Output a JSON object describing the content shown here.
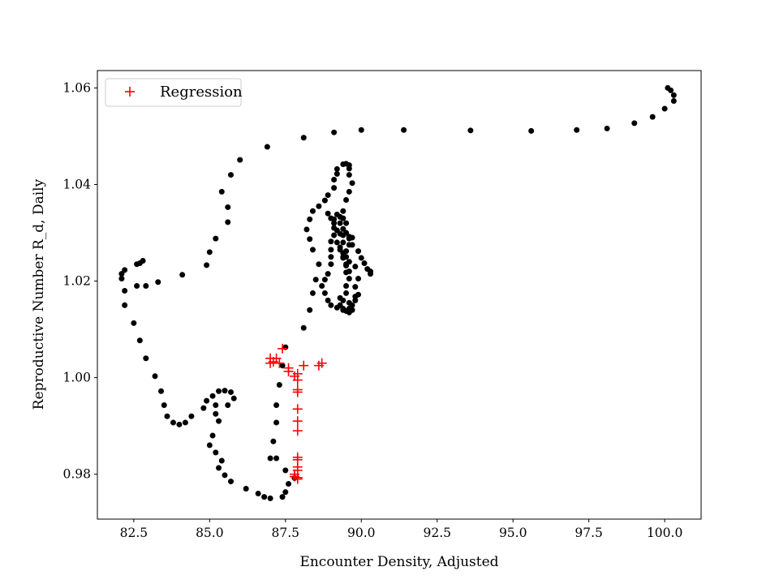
{
  "chart_data": {
    "type": "scatter",
    "title": "",
    "xlabel": "Encounter Density, Adjusted",
    "ylabel": "Reproductive Number R_d, Daily",
    "xlim": [
      81.3,
      101.2
    ],
    "ylim": [
      0.9707,
      1.0636
    ],
    "xticks": [
      82.5,
      85.0,
      87.5,
      90.0,
      92.5,
      95.0,
      97.5,
      100.0
    ],
    "xtick_labels": [
      "82.5",
      "85.0",
      "87.5",
      "90.0",
      "92.5",
      "95.0",
      "97.5",
      "100.0"
    ],
    "yticks": [
      0.98,
      1.0,
      1.02,
      1.04,
      1.06
    ],
    "ytick_labels": [
      "0.98",
      "1.00",
      "1.02",
      "1.04",
      "1.06"
    ],
    "grid": false,
    "legend": {
      "position": "upper-left",
      "entries": [
        "Regression"
      ]
    },
    "series": [
      {
        "marker": "circle",
        "color": "#000000",
        "points": [
          [
            100.1,
            1.06
          ],
          [
            100.2,
            1.0595
          ],
          [
            100.3,
            1.0585
          ],
          [
            100.3,
            1.0573
          ],
          [
            100.0,
            1.0557
          ],
          [
            99.6,
            1.054
          ],
          [
            99.0,
            1.0527
          ],
          [
            98.1,
            1.0516
          ],
          [
            97.1,
            1.0513
          ],
          [
            95.6,
            1.0511
          ],
          [
            93.6,
            1.0512
          ],
          [
            91.4,
            1.0513
          ],
          [
            90.0,
            1.0513
          ],
          [
            89.1,
            1.0508
          ],
          [
            88.1,
            1.0497
          ],
          [
            86.9,
            1.0478
          ],
          [
            86.0,
            1.0451
          ],
          [
            85.7,
            1.042
          ],
          [
            85.4,
            1.0385
          ],
          [
            85.6,
            1.0353
          ],
          [
            85.6,
            1.0322
          ],
          [
            85.2,
            1.0288
          ],
          [
            85.0,
            1.026
          ],
          [
            84.9,
            1.0233
          ],
          [
            84.1,
            1.0213
          ],
          [
            83.3,
            1.0198
          ],
          [
            82.9,
            1.019
          ],
          [
            82.6,
            1.019
          ],
          [
            82.8,
            1.0242
          ],
          [
            82.7,
            1.0237
          ],
          [
            82.6,
            1.0235
          ],
          [
            82.2,
            1.0223
          ],
          [
            82.1,
            1.0215
          ],
          [
            82.1,
            1.0205
          ],
          [
            82.2,
            1.018
          ],
          [
            82.2,
            1.015
          ],
          [
            82.5,
            1.0113
          ],
          [
            82.7,
            1.0077
          ],
          [
            82.9,
            1.004
          ],
          [
            83.2,
            1.0003
          ],
          [
            83.4,
            0.9972
          ],
          [
            83.5,
            0.9943
          ],
          [
            83.6,
            0.992
          ],
          [
            83.8,
            0.9907
          ],
          [
            84.0,
            0.9903
          ],
          [
            84.2,
            0.9907
          ],
          [
            84.4,
            0.992
          ],
          [
            84.8,
            0.9937
          ],
          [
            84.9,
            0.9952
          ],
          [
            85.1,
            0.9962
          ],
          [
            85.3,
            0.9972
          ],
          [
            85.5,
            0.9973
          ],
          [
            85.7,
            0.997
          ],
          [
            85.8,
            0.9957
          ],
          [
            85.6,
            0.9943
          ],
          [
            85.2,
            0.9943
          ],
          [
            85.2,
            0.9925
          ],
          [
            85.3,
            0.991
          ],
          [
            85.1,
            0.988
          ],
          [
            85.0,
            0.986
          ],
          [
            85.2,
            0.9845
          ],
          [
            85.4,
            0.9828
          ],
          [
            85.3,
            0.9813
          ],
          [
            85.5,
            0.9798
          ],
          [
            85.7,
            0.9785
          ],
          [
            86.2,
            0.977
          ],
          [
            86.6,
            0.976
          ],
          [
            86.8,
            0.9753
          ],
          [
            87.0,
            0.975
          ],
          [
            87.4,
            0.9753
          ],
          [
            87.5,
            0.9763
          ],
          [
            87.6,
            0.978
          ],
          [
            87.8,
            0.9792
          ],
          [
            87.5,
            0.9808
          ],
          [
            87.2,
            0.9833
          ],
          [
            87.0,
            0.9833
          ],
          [
            87.1,
            0.9868
          ],
          [
            87.2,
            0.9907
          ],
          [
            87.2,
            0.9943
          ],
          [
            87.3,
            0.9985
          ],
          [
            87.4,
            1.0025
          ],
          [
            87.5,
            1.0063
          ],
          [
            88.1,
            1.0103
          ],
          [
            88.3,
            1.014
          ],
          [
            88.4,
            1.0175
          ],
          [
            88.5,
            1.0203
          ],
          [
            88.6,
            1.0235
          ],
          [
            88.4,
            1.0265
          ],
          [
            88.3,
            1.0287
          ],
          [
            88.2,
            1.0307
          ],
          [
            88.3,
            1.0328
          ],
          [
            88.4,
            1.0345
          ],
          [
            88.6,
            1.0355
          ],
          [
            88.8,
            1.0367
          ],
          [
            88.9,
            1.0378
          ],
          [
            89.1,
            1.0393
          ],
          [
            89.1,
            1.041
          ],
          [
            89.2,
            1.0422
          ],
          [
            89.2,
            1.0432
          ],
          [
            89.4,
            1.0442
          ],
          [
            89.5,
            1.0443
          ],
          [
            89.6,
            1.044
          ],
          [
            89.6,
            1.0433
          ],
          [
            89.6,
            1.042
          ],
          [
            89.7,
            1.0403
          ],
          [
            89.6,
            1.0385
          ],
          [
            89.5,
            1.0368
          ],
          [
            89.4,
            1.0345
          ],
          [
            89.4,
            1.033
          ],
          [
            89.5,
            1.032
          ],
          [
            89.4,
            1.0308
          ],
          [
            89.3,
            1.0298
          ],
          [
            89.6,
            1.0288
          ],
          [
            89.7,
            1.0275
          ],
          [
            89.9,
            1.0262
          ],
          [
            90.0,
            1.0248
          ],
          [
            90.1,
            1.0237
          ],
          [
            90.2,
            1.0225
          ],
          [
            90.3,
            1.0215
          ],
          [
            90.3,
            1.022
          ],
          [
            89.8,
            1.023
          ],
          [
            89.6,
            1.024
          ],
          [
            89.5,
            1.025
          ],
          [
            89.4,
            1.0258
          ],
          [
            89.3,
            1.027
          ],
          [
            89.2,
            1.028
          ],
          [
            89.1,
            1.0295
          ],
          [
            89.1,
            1.031
          ],
          [
            89.1,
            1.032
          ],
          [
            89.0,
            1.033
          ],
          [
            89.2,
            1.0338
          ],
          [
            89.3,
            1.0333
          ],
          [
            89.3,
            1.032
          ],
          [
            89.2,
            1.0305
          ],
          [
            89.0,
            1.0282
          ],
          [
            89.0,
            1.0265
          ],
          [
            89.0,
            1.025
          ],
          [
            89.0,
            1.0235
          ],
          [
            88.9,
            1.0215
          ],
          [
            88.8,
            1.0203
          ],
          [
            88.7,
            1.019
          ],
          [
            88.8,
            1.0175
          ],
          [
            88.9,
            1.016
          ],
          [
            89.0,
            1.015
          ],
          [
            89.2,
            1.0145
          ],
          [
            89.4,
            1.014
          ],
          [
            89.5,
            1.0138
          ],
          [
            89.6,
            1.0143
          ],
          [
            89.6,
            1.0155
          ],
          [
            89.8,
            1.0168
          ],
          [
            89.8,
            1.0188
          ],
          [
            89.9,
            1.0205
          ],
          [
            89.6,
            1.022
          ],
          [
            89.5,
            1.0235
          ],
          [
            89.4,
            1.025
          ],
          [
            89.3,
            1.0265
          ],
          [
            89.4,
            1.028
          ],
          [
            89.4,
            1.0295
          ],
          [
            89.7,
            1.029
          ],
          [
            89.6,
            1.0275
          ],
          [
            89.5,
            1.0262
          ],
          [
            89.4,
            1.0248
          ],
          [
            89.5,
            1.0232
          ],
          [
            89.5,
            1.0218
          ],
          [
            89.6,
            1.0205
          ],
          [
            89.5,
            1.019
          ],
          [
            89.5,
            1.0175
          ],
          [
            89.4,
            1.016
          ],
          [
            89.3,
            1.015
          ],
          [
            89.7,
            1.015
          ],
          [
            89.8,
            1.016
          ],
          [
            89.9,
            1.0172
          ],
          [
            88.9,
            1.034
          ],
          [
            89.1,
            1.0328
          ],
          [
            89.6,
            1.0292
          ],
          [
            89.5,
            1.03
          ],
          [
            89.7,
            1.014
          ],
          [
            89.6,
            1.0135
          ],
          [
            89.4,
            1.0143
          ],
          [
            89.3,
            1.0165
          ]
        ]
      },
      {
        "name": "Regression",
        "marker": "plus",
        "color": "#ff0000",
        "points": [
          [
            87.4,
            1.006
          ],
          [
            87.0,
            1.004
          ],
          [
            87.2,
            1.004
          ],
          [
            87.0,
            1.003
          ],
          [
            87.3,
            1.003
          ],
          [
            87.1,
            1.0033
          ],
          [
            87.6,
            1.002
          ],
          [
            88.1,
            1.0025
          ],
          [
            88.6,
            1.0025
          ],
          [
            88.7,
            1.003
          ],
          [
            87.6,
            1.0013
          ],
          [
            87.9,
            1.0008
          ],
          [
            87.8,
            1.0003
          ],
          [
            87.9,
            0.9995
          ],
          [
            87.9,
            0.9975
          ],
          [
            87.9,
            0.997
          ],
          [
            87.9,
            0.9935
          ],
          [
            87.9,
            0.991
          ],
          [
            87.9,
            0.989
          ],
          [
            87.9,
            0.9835
          ],
          [
            87.9,
            0.983
          ],
          [
            87.9,
            0.9815
          ],
          [
            87.9,
            0.9808
          ],
          [
            87.8,
            0.98
          ],
          [
            87.8,
            0.9795
          ],
          [
            87.9,
            0.9793
          ],
          [
            87.9,
            0.979
          ]
        ]
      }
    ]
  }
}
